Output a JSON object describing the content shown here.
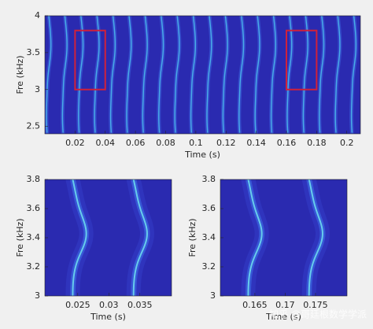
{
  "chart_data": [
    {
      "type": "spectrogram",
      "xlabel": "Time (s)",
      "ylabel": "Fre (kHz)",
      "xlim": [
        0,
        0.209
      ],
      "ylim": [
        2.4,
        4
      ],
      "xticks": [
        0.02,
        0.04,
        0.06,
        0.08,
        0.1,
        0.12,
        0.14,
        0.16,
        0.18,
        0.2
      ],
      "yticks": [
        2.5,
        3,
        3.5,
        4
      ],
      "highlights": [
        {
          "xlim": [
            0.02,
            0.04
          ],
          "ylim": [
            3,
            3.8
          ],
          "color": "#d0213a"
        },
        {
          "xlim": [
            0.16,
            0.18
          ],
          "ylim": [
            3,
            3.8
          ],
          "color": "#d0213a"
        }
      ]
    },
    {
      "type": "spectrogram",
      "xlabel": "Time (s)",
      "ylabel": "Fre (kHz)",
      "xlim": [
        0.0197,
        0.0401
      ],
      "ylim": [
        3,
        3.8
      ],
      "xticks": [
        0.025,
        0.03,
        0.035
      ],
      "yticks": [
        3,
        3.2,
        3.4,
        3.6,
        3.8
      ]
    },
    {
      "type": "spectrogram",
      "xlabel": "Time (s)",
      "ylabel": "Fre (kHz)",
      "xlim": [
        0.1593,
        0.1802
      ],
      "ylim": [
        3,
        3.8
      ],
      "xticks": [
        0.165,
        0.17,
        0.175
      ],
      "yticks": [
        3,
        3.2,
        3.4,
        3.6,
        3.8
      ]
    }
  ],
  "watermark": "知乎 @哥廷根数学学派"
}
